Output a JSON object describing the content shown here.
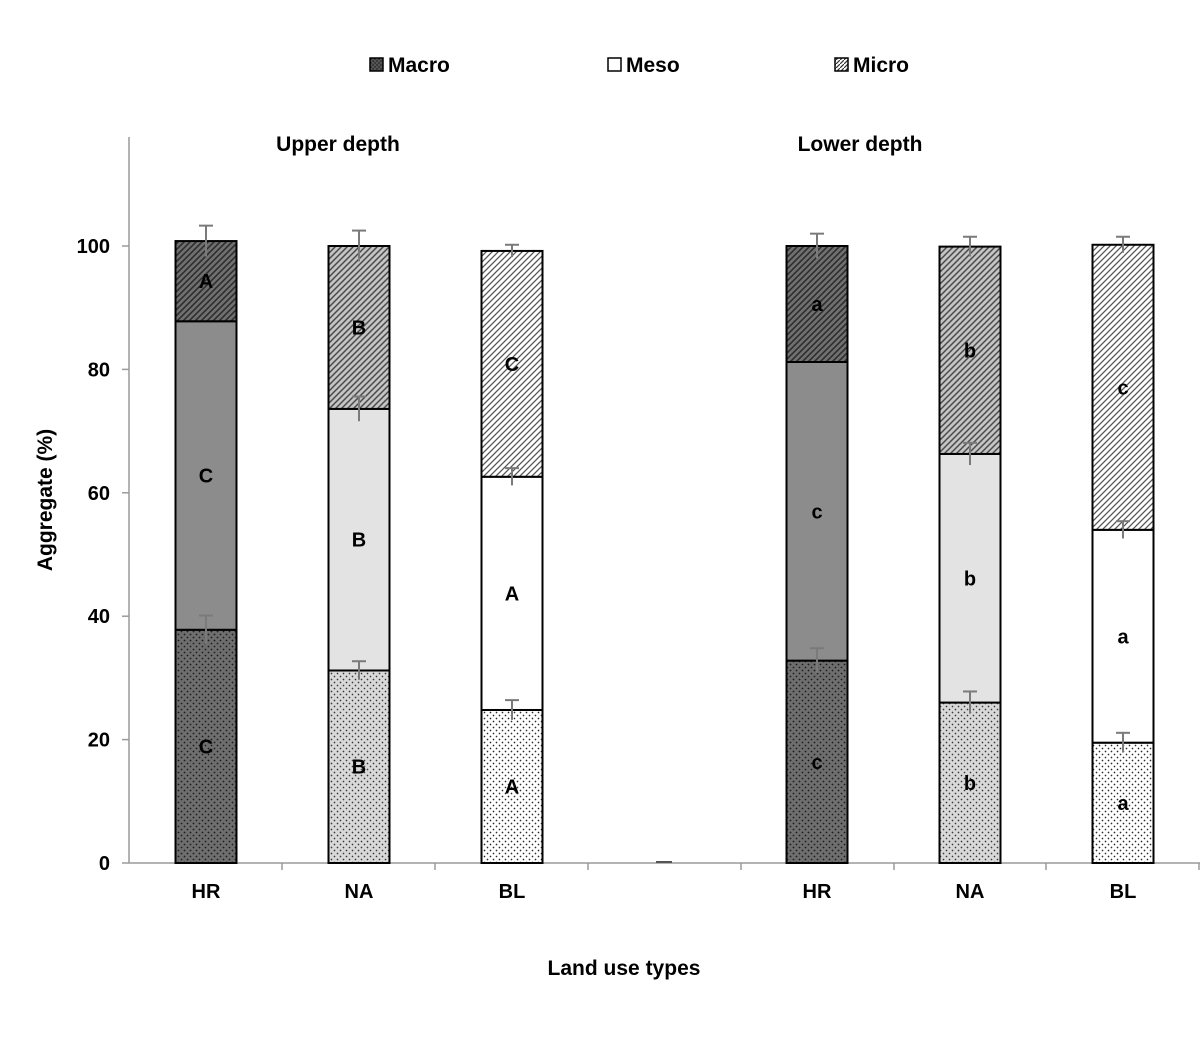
{
  "chart_data": {
    "type": "bar",
    "stacked": true,
    "ylabel": "Aggregate (%)",
    "xlabel": "Land use types",
    "ylim": [
      0,
      100
    ],
    "yticks": [
      0,
      20,
      40,
      60,
      80,
      100
    ],
    "legend": {
      "placement": "top-center",
      "entries": [
        "Macro",
        "Meso",
        "Micro"
      ]
    },
    "grid": false,
    "groups": [
      {
        "title": "Upper depth",
        "categories": [
          "HR",
          "NA",
          "BL"
        ],
        "series": [
          {
            "name": "Macro",
            "values": [
              37.8,
              31.2,
              24.8
            ],
            "errors": [
              2.3,
              1.5,
              1.6
            ],
            "letters": [
              "C",
              "B",
              "A"
            ]
          },
          {
            "name": "Meso",
            "values": [
              50.0,
              42.4,
              37.8
            ],
            "errors": [
              0,
              2.0,
              1.4
            ],
            "letters": [
              "C",
              "B",
              "A"
            ]
          },
          {
            "name": "Micro",
            "values": [
              13.0,
              26.4,
              36.6
            ],
            "errors": [
              2.5,
              2.5,
              1.0
            ],
            "letters": [
              "A",
              "B",
              "C"
            ]
          }
        ]
      },
      {
        "title": "Lower depth",
        "categories": [
          "HR",
          "NA",
          "BL"
        ],
        "series": [
          {
            "name": "Macro",
            "values": [
              32.8,
              26.0,
              19.5
            ],
            "errors": [
              2.0,
              1.8,
              1.6
            ],
            "letters": [
              "c",
              "b",
              "a"
            ]
          },
          {
            "name": "Meso",
            "values": [
              48.4,
              40.3,
              34.5
            ],
            "errors": [
              0,
              1.8,
              1.4
            ],
            "letters": [
              "c",
              "b",
              "a"
            ]
          },
          {
            "name": "Micro",
            "values": [
              18.8,
              33.6,
              46.2
            ],
            "errors": [
              2.0,
              1.6,
              1.3
            ],
            "letters": [
              "a",
              "b",
              "c"
            ]
          }
        ]
      }
    ]
  }
}
